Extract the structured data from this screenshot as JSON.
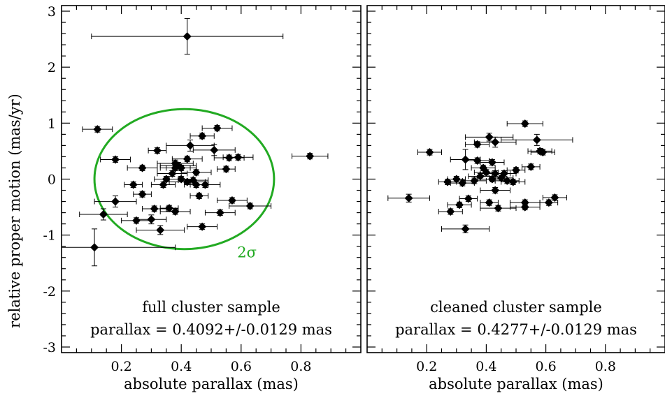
{
  "chart_data": [
    {
      "type": "scatter",
      "xlabel": "absolute parallax (mas)",
      "ylabel": "relative proper motion (mas/yr)",
      "xlim": [
        0.0,
        1.0
      ],
      "ylim": [
        -3.1,
        3.1
      ],
      "x_ticks": [
        0.2,
        0.4,
        0.6,
        0.8
      ],
      "x_tick_labels": [
        "0.2",
        "0.4",
        "0.6",
        "0.8"
      ],
      "y_ticks": [
        -3,
        -2,
        -1,
        0,
        1,
        2,
        3
      ],
      "y_tick_labels": [
        "-3",
        "-2",
        "-1",
        "0",
        "1",
        "2",
        "3"
      ],
      "annotation_line1": "full cluster sample",
      "annotation_line2": "parallax = 0.4092+/-0.0129 mas",
      "ellipse": {
        "label": "2σ",
        "color": "#22aa22",
        "cx": 0.41,
        "cy": 0.0,
        "rx": 0.3,
        "ry": 1.25
      },
      "points": [
        {
          "x": 0.42,
          "y": 2.55,
          "xerr": 0.32,
          "yerr": 0.32
        },
        {
          "x": 0.12,
          "y": 0.89,
          "xerr": 0.05,
          "yerr": 0.05
        },
        {
          "x": 0.18,
          "y": 0.35,
          "xerr": 0.05,
          "yerr": 0.05
        },
        {
          "x": 0.18,
          "y": -0.4,
          "xerr": 0.07,
          "yerr": 0.1
        },
        {
          "x": 0.14,
          "y": -0.63,
          "xerr": 0.08,
          "yerr": 0.1
        },
        {
          "x": 0.11,
          "y": -1.22,
          "xerr": 0.27,
          "yerr": 0.33
        },
        {
          "x": 0.24,
          "y": -0.1,
          "xerr": 0.03,
          "yerr": 0.05
        },
        {
          "x": 0.25,
          "y": -0.74,
          "xerr": 0.05,
          "yerr": 0.05
        },
        {
          "x": 0.27,
          "y": 0.2,
          "xerr": 0.05,
          "yerr": 0.05
        },
        {
          "x": 0.27,
          "y": -0.27,
          "xerr": 0.03,
          "yerr": 0.05
        },
        {
          "x": 0.3,
          "y": -0.72,
          "xerr": 0.05,
          "yerr": 0.08
        },
        {
          "x": 0.31,
          "y": -0.53,
          "xerr": 0.04,
          "yerr": 0.05
        },
        {
          "x": 0.32,
          "y": 0.51,
          "xerr": 0.03,
          "yerr": 0.05
        },
        {
          "x": 0.33,
          "y": -0.91,
          "xerr": 0.08,
          "yerr": 0.08
        },
        {
          "x": 0.34,
          "y": -0.1,
          "xerr": 0.04,
          "yerr": 0.05
        },
        {
          "x": 0.35,
          "y": 0.0,
          "xerr": 0.04,
          "yerr": 0.05
        },
        {
          "x": 0.36,
          "y": -0.52,
          "xerr": 0.03,
          "yerr": 0.05
        },
        {
          "x": 0.37,
          "y": 0.1,
          "xerr": 0.05,
          "yerr": 0.05
        },
        {
          "x": 0.38,
          "y": 0.28,
          "xerr": 0.06,
          "yerr": 0.06
        },
        {
          "x": 0.38,
          "y": 0.2,
          "xerr": 0.05,
          "yerr": 0.05
        },
        {
          "x": 0.38,
          "y": -0.58,
          "xerr": 0.05,
          "yerr": 0.05
        },
        {
          "x": 0.39,
          "y": 0.24,
          "xerr": 0.06,
          "yerr": 0.06
        },
        {
          "x": 0.4,
          "y": 0.2,
          "xerr": 0.05,
          "yerr": 0.05
        },
        {
          "x": 0.4,
          "y": 0.0,
          "xerr": 0.04,
          "yerr": 0.05
        },
        {
          "x": 0.42,
          "y": 0.36,
          "xerr": 0.05,
          "yerr": 0.05
        },
        {
          "x": 0.42,
          "y": -0.05,
          "xerr": 0.06,
          "yerr": 0.05
        },
        {
          "x": 0.43,
          "y": 0.6,
          "xerr": 0.08,
          "yerr": 0.1
        },
        {
          "x": 0.44,
          "y": -0.02,
          "xerr": 0.05,
          "yerr": 0.05
        },
        {
          "x": 0.45,
          "y": 0.12,
          "xerr": 0.05,
          "yerr": 0.05
        },
        {
          "x": 0.45,
          "y": -0.1,
          "xerr": 0.04,
          "yerr": 0.05
        },
        {
          "x": 0.46,
          "y": -0.3,
          "xerr": 0.03,
          "yerr": 0.05
        },
        {
          "x": 0.47,
          "y": 0.77,
          "xerr": 0.04,
          "yerr": 0.05
        },
        {
          "x": 0.47,
          "y": -0.85,
          "xerr": 0.05,
          "yerr": 0.05
        },
        {
          "x": 0.48,
          "y": -0.1,
          "xerr": 0.05,
          "yerr": 0.05
        },
        {
          "x": 0.51,
          "y": 0.52,
          "xerr": 0.07,
          "yerr": 0.1
        },
        {
          "x": 0.52,
          "y": 0.91,
          "xerr": 0.05,
          "yerr": 0.05
        },
        {
          "x": 0.53,
          "y": -0.6,
          "xerr": 0.05,
          "yerr": 0.05
        },
        {
          "x": 0.55,
          "y": 0.18,
          "xerr": 0.03,
          "yerr": 0.05
        },
        {
          "x": 0.56,
          "y": 0.38,
          "xerr": 0.05,
          "yerr": 0.05
        },
        {
          "x": 0.57,
          "y": -0.38,
          "xerr": 0.05,
          "yerr": 0.05
        },
        {
          "x": 0.59,
          "y": 0.39,
          "xerr": 0.05,
          "yerr": 0.05
        },
        {
          "x": 0.63,
          "y": -0.48,
          "xerr": 0.07,
          "yerr": 0.05
        },
        {
          "x": 0.83,
          "y": 0.41,
          "xerr": 0.06,
          "yerr": 0.05
        }
      ]
    },
    {
      "type": "scatter",
      "xlabel": "absolute parallax (mas)",
      "ylabel": "",
      "xlim": [
        0.0,
        1.0
      ],
      "ylim": [
        -3.1,
        3.1
      ],
      "x_ticks": [
        0.2,
        0.4,
        0.6,
        0.8
      ],
      "x_tick_labels": [
        "0.2",
        "0.4",
        "0.6",
        "0.8"
      ],
      "y_ticks": [
        -3,
        -2,
        -1,
        0,
        1,
        2,
        3
      ],
      "annotation_line1": "cleaned cluster sample",
      "annotation_line2": "parallax = 0.4277+/-0.0129 mas",
      "points": [
        {
          "x": 0.14,
          "y": -0.34,
          "xerr": 0.07,
          "yerr": 0.07
        },
        {
          "x": 0.21,
          "y": 0.48,
          "xerr": 0.04,
          "yerr": 0.05
        },
        {
          "x": 0.27,
          "y": -0.05,
          "xerr": 0.03,
          "yerr": 0.05
        },
        {
          "x": 0.28,
          "y": -0.58,
          "xerr": 0.04,
          "yerr": 0.05
        },
        {
          "x": 0.3,
          "y": 0.0,
          "xerr": 0.03,
          "yerr": 0.05
        },
        {
          "x": 0.31,
          "y": -0.46,
          "xerr": 0.04,
          "yerr": 0.05
        },
        {
          "x": 0.32,
          "y": -0.07,
          "xerr": 0.04,
          "yerr": 0.05
        },
        {
          "x": 0.33,
          "y": 0.35,
          "xerr": 0.05,
          "yerr": 0.18
        },
        {
          "x": 0.33,
          "y": -0.89,
          "xerr": 0.08,
          "yerr": 0.07
        },
        {
          "x": 0.34,
          "y": -0.35,
          "xerr": 0.03,
          "yerr": 0.05
        },
        {
          "x": 0.36,
          "y": -0.03,
          "xerr": 0.04,
          "yerr": 0.05
        },
        {
          "x": 0.37,
          "y": 0.62,
          "xerr": 0.04,
          "yerr": 0.05
        },
        {
          "x": 0.37,
          "y": 0.33,
          "xerr": 0.04,
          "yerr": 0.05
        },
        {
          "x": 0.38,
          "y": 0.05,
          "xerr": 0.04,
          "yerr": 0.05
        },
        {
          "x": 0.39,
          "y": 0.2,
          "xerr": 0.04,
          "yerr": 0.05
        },
        {
          "x": 0.4,
          "y": 0.12,
          "xerr": 0.04,
          "yerr": 0.05
        },
        {
          "x": 0.41,
          "y": 0.75,
          "xerr": 0.08,
          "yerr": 0.07
        },
        {
          "x": 0.41,
          "y": -0.42,
          "xerr": 0.03,
          "yerr": 0.05
        },
        {
          "x": 0.42,
          "y": 0.3,
          "xerr": 0.04,
          "yerr": 0.05
        },
        {
          "x": 0.42,
          "y": 0.0,
          "xerr": 0.05,
          "yerr": 0.05
        },
        {
          "x": 0.43,
          "y": 0.66,
          "xerr": 0.07,
          "yerr": 0.09
        },
        {
          "x": 0.43,
          "y": 0.1,
          "xerr": 0.05,
          "yerr": 0.05
        },
        {
          "x": 0.43,
          "y": -0.2,
          "xerr": 0.05,
          "yerr": 0.05
        },
        {
          "x": 0.44,
          "y": -0.52,
          "xerr": 0.06,
          "yerr": 0.05
        },
        {
          "x": 0.45,
          "y": 0.02,
          "xerr": 0.04,
          "yerr": 0.05
        },
        {
          "x": 0.46,
          "y": 0.1,
          "xerr": 0.04,
          "yerr": 0.05
        },
        {
          "x": 0.47,
          "y": -0.03,
          "xerr": 0.04,
          "yerr": 0.05
        },
        {
          "x": 0.49,
          "y": -0.05,
          "xerr": 0.04,
          "yerr": 0.05
        },
        {
          "x": 0.5,
          "y": 0.16,
          "xerr": 0.03,
          "yerr": 0.05
        },
        {
          "x": 0.53,
          "y": 0.99,
          "xerr": 0.06,
          "yerr": 0.05
        },
        {
          "x": 0.53,
          "y": -0.42,
          "xerr": 0.05,
          "yerr": 0.05
        },
        {
          "x": 0.53,
          "y": -0.5,
          "xerr": 0.05,
          "yerr": 0.05
        },
        {
          "x": 0.55,
          "y": 0.22,
          "xerr": 0.03,
          "yerr": 0.05
        },
        {
          "x": 0.57,
          "y": 0.7,
          "xerr": 0.12,
          "yerr": 0.1
        },
        {
          "x": 0.58,
          "y": 0.5,
          "xerr": 0.04,
          "yerr": 0.05
        },
        {
          "x": 0.59,
          "y": 0.48,
          "xerr": 0.04,
          "yerr": 0.05
        },
        {
          "x": 0.61,
          "y": -0.42,
          "xerr": 0.03,
          "yerr": 0.05
        },
        {
          "x": 0.63,
          "y": -0.33,
          "xerr": 0.04,
          "yerr": 0.05
        }
      ]
    }
  ]
}
